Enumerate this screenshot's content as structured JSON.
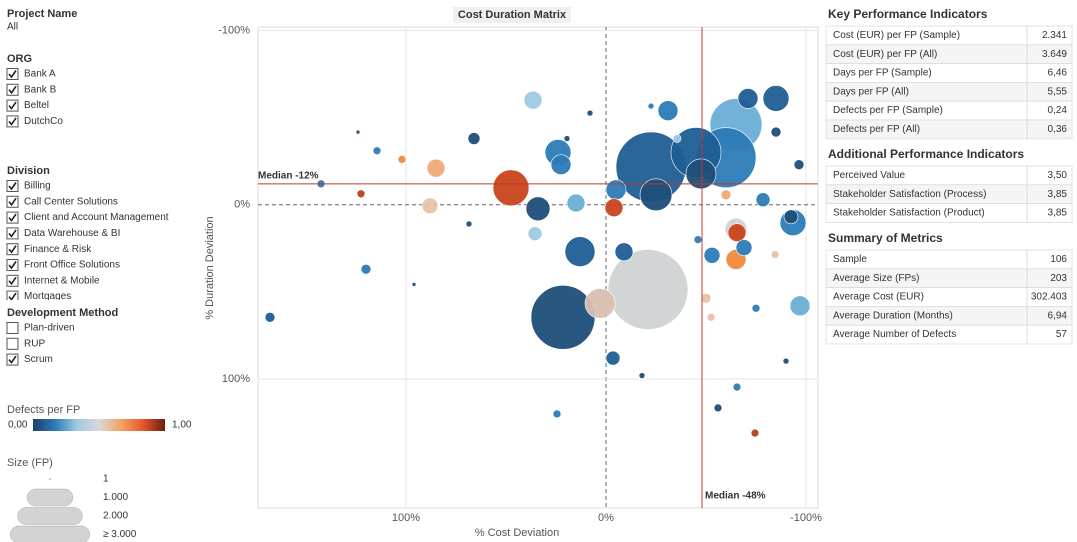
{
  "filters": [
    {
      "title": "Project Name",
      "value": "All"
    },
    {
      "title": "ORG",
      "items": [
        {
          "label": "Bank A",
          "checked": true
        },
        {
          "label": "Bank B",
          "checked": true
        },
        {
          "label": "Beltel",
          "checked": true
        },
        {
          "label": "DutchCo",
          "checked": true
        }
      ]
    },
    {
      "title": "Division",
      "items": [
        {
          "label": "Billing",
          "checked": true
        },
        {
          "label": "Call Center Solutions",
          "checked": true
        },
        {
          "label": "Client and Account Management",
          "checked": true
        },
        {
          "label": "Data Warehouse & BI",
          "checked": true
        },
        {
          "label": "Finance & Risk",
          "checked": true
        },
        {
          "label": "Front Office Solutions",
          "checked": true
        },
        {
          "label": "Internet & Mobile",
          "checked": true
        },
        {
          "label": "Mortgages",
          "checked": true
        }
      ]
    },
    {
      "title": "Development Method",
      "items": [
        {
          "label": "Plan-driven",
          "checked": false
        },
        {
          "label": "RUP",
          "checked": false
        },
        {
          "label": "Scrum",
          "checked": true
        }
      ]
    }
  ],
  "color_legend": {
    "title": "Defects per FP",
    "min": {
      "value": 0,
      "label": "0,00"
    },
    "max": {
      "value": 1,
      "label": "1,00"
    },
    "colors": [
      "#1f3f6e",
      "#2c7bb6",
      "#9ecae1",
      "#d9d9d9",
      "#f4a261",
      "#e4572e",
      "#6b1d0f"
    ]
  },
  "size_legend": {
    "title": "Size (FP)",
    "entries": [
      {
        "value": 1,
        "label": "1"
      },
      {
        "value": 1000,
        "label": "1.000"
      },
      {
        "value": 2000,
        "label": "2.000"
      },
      {
        "value": 3000,
        "label": "≥ 3.000"
      }
    ]
  },
  "chart_data": {
    "type": "scatter",
    "title": "Cost Duration Matrix",
    "xlabel": "% Cost Deviation",
    "ylabel": "% Duration Deviation",
    "x": [
      -21,
      21.5,
      -22.5,
      -65,
      -60,
      -45,
      47.5,
      -25,
      -47.5,
      3,
      13,
      24,
      22.5,
      34,
      15,
      -5,
      -4,
      36.5,
      -31,
      -85,
      -71,
      -93.5,
      -65,
      -65.5,
      -65,
      -69,
      -53,
      -97,
      -3.5,
      -9,
      85,
      88,
      35.5,
      66,
      142.5,
      122.5,
      168,
      120,
      102,
      114.5,
      68.5,
      24.5,
      -65.5,
      -56,
      -74.5,
      -90,
      -75,
      -50,
      -52.5,
      -84.5,
      -78.5,
      -60,
      -96.5,
      -85,
      -46,
      -18,
      8,
      19.5,
      -22.5,
      -35.5,
      -92.5,
      96,
      124
    ],
    "y": [
      48.6,
      64.6,
      -21.7,
      -46,
      -27,
      -30,
      -9.7,
      -5.7,
      -17.7,
      56.6,
      26.9,
      -30,
      -23,
      2.3,
      -1,
      -8.6,
      1.7,
      -60,
      -54,
      -61,
      -61,
      10.3,
      14,
      16,
      31.4,
      24.6,
      29,
      58,
      88,
      27,
      -21,
      0.6,
      16.6,
      -38,
      -12,
      -6.3,
      64.6,
      37,
      -26,
      -31,
      11,
      120,
      104.6,
      116.6,
      131,
      89.7,
      59.4,
      53.7,
      64.6,
      28.6,
      -2.9,
      -5.7,
      -23,
      -41.7,
      20,
      98,
      -52.6,
      -38,
      -56.6,
      -38,
      6.9,
      45.7,
      -41.7
    ],
    "sizes": [
      2844,
      1820,
      2178,
      1200,
      1600,
      1111,
      576,
      455,
      400,
      400,
      400,
      300,
      178,
      256,
      144,
      178,
      144,
      144,
      178,
      300,
      178,
      300,
      215,
      144,
      178,
      114,
      114,
      178,
      87,
      144,
      144,
      114,
      87,
      64,
      28,
      28,
      44,
      44,
      28,
      28,
      16,
      28,
      28,
      28,
      28,
      16,
      28,
      44,
      28,
      28,
      87,
      44,
      44,
      44,
      28,
      16,
      16,
      16,
      16,
      28,
      87,
      7,
      7
    ],
    "colors": [
      "#d0d3d4",
      "#1f4e79",
      "#1f5e95",
      "#6baed6",
      "#2c7bb6",
      "#1f5e95",
      "#c8441a",
      "#1f4e79",
      "#1f4e79",
      "#d9bfb0",
      "#1f5e95",
      "#2c7bb6",
      "#2c7bb6",
      "#1f4e79",
      "#6baed6",
      "#2c7bb6",
      "#c8441a",
      "#9ecae1",
      "#2c7bb6",
      "#1f5e95",
      "#1f5e95",
      "#2c7bb6",
      "#d0d3d4",
      "#c8441a",
      "#ef8a3c",
      "#2c7bb6",
      "#2c7bb6",
      "#6baed6",
      "#1f5e95",
      "#1f5e95",
      "#f0a878",
      "#e8c2a8",
      "#9ecae1",
      "#1f4e79",
      "#2c7bb6",
      "#b2421a",
      "#1f5e95",
      "#2c7bb6",
      "#ef8a3c",
      "#2c7bb6",
      "#1f4e79",
      "#2c7bb6",
      "#2c7bb6",
      "#1f4e79",
      "#b2421a",
      "#1f4e79",
      "#2c7bb6",
      "#e8c2a8",
      "#e8c2a8",
      "#e8c2a8",
      "#2c7bb6",
      "#f0a878",
      "#1f4e79",
      "#1f4e79",
      "#2c7bb6",
      "#1f4e79",
      "#1f4e79",
      "#1f4e79",
      "#2c7bb6",
      "#9ecae1",
      "#1f4e79",
      "#1f4e79",
      "#1f4e79"
    ],
    "xlim": [
      174,
      -106
    ],
    "ylim": [
      -102,
      174
    ],
    "xticks": [
      {
        "value": 100,
        "label": "100%"
      },
      {
        "value": 0,
        "label": "0%"
      },
      {
        "value": -100,
        "label": "-100%"
      }
    ],
    "yticks": [
      {
        "value": -100,
        "label": "-100%"
      },
      {
        "value": 0,
        "label": "0%"
      },
      {
        "value": 100,
        "label": "100%"
      }
    ],
    "grid": true,
    "zero_lines": true,
    "reference_lines": [
      {
        "axis": "y",
        "value": -12,
        "label": "Median -12%",
        "color": "#c0392b"
      },
      {
        "axis": "x",
        "value": -48,
        "label": "Median -48%",
        "color": "#c0392b"
      }
    ]
  },
  "tables": [
    {
      "title": "Key Performance Indicators",
      "rows": [
        [
          "Cost (EUR) per FP (Sample)",
          "2.341"
        ],
        [
          "Cost (EUR) per FP (All)",
          "3.649"
        ],
        [
          "Days per FP (Sample)",
          "6,46"
        ],
        [
          "Days per FP (All)",
          "5,55"
        ],
        [
          "Defects per FP (Sample)",
          "0,24"
        ],
        [
          "Defects per FP (All)",
          "0,36"
        ]
      ]
    },
    {
      "title": "Additional Performance Indicators",
      "rows": [
        [
          "Perceived Value",
          "3,50"
        ],
        [
          "Stakeholder Satisfaction (Process)",
          "3,85"
        ],
        [
          "Stakeholder Satisfaction (Product)",
          "3,85"
        ]
      ]
    },
    {
      "title": "Summary of Metrics",
      "rows": [
        [
          "Sample",
          "106"
        ],
        [
          "Average Size (FPs)",
          "203"
        ],
        [
          "Average Cost (EUR)",
          "302.403"
        ],
        [
          "Average Duration (Months)",
          "6,94"
        ],
        [
          "Average Number of Defects",
          "57"
        ]
      ]
    }
  ]
}
